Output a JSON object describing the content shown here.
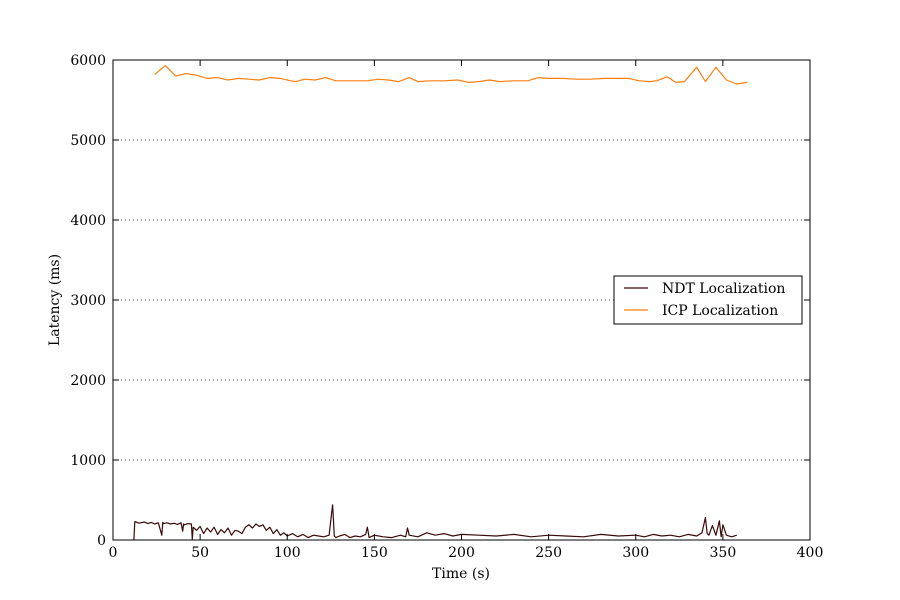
{
  "chart_data": {
    "type": "line",
    "title": "",
    "xlabel": "Time (s)",
    "ylabel": "Latency (ms)",
    "xlim": [
      0,
      400
    ],
    "ylim": [
      0,
      6000
    ],
    "xticks": [
      "0",
      "50",
      "100",
      "150",
      "200",
      "250",
      "300",
      "350",
      "400"
    ],
    "yticks": [
      "0",
      "1000",
      "2000",
      "3000",
      "4000",
      "5000",
      "6000"
    ],
    "grid": "horizontal dotted",
    "legend_position": "center-right",
    "series": [
      {
        "name": "NDT Localization",
        "color": "#3a0a0a",
        "x": [
          12,
          12.5,
          15,
          18,
          20,
          22,
          24,
          26,
          28,
          28.6,
          29,
          31,
          33,
          35,
          37,
          39,
          40,
          40.5,
          41,
          43,
          45,
          45.5,
          46,
          48,
          50,
          52,
          54,
          56,
          58,
          60,
          62,
          64,
          66,
          68,
          70,
          72,
          74,
          76,
          78,
          80,
          82,
          84,
          86,
          88,
          90,
          92,
          94,
          96,
          98,
          100,
          103,
          106,
          109,
          112,
          115,
          118,
          121,
          124,
          126,
          127,
          128,
          130,
          133,
          136,
          139,
          142,
          145,
          146,
          147,
          150,
          155,
          160,
          165,
          168,
          169,
          170,
          175,
          180,
          185,
          190,
          195,
          200,
          210,
          220,
          230,
          240,
          250,
          260,
          270,
          280,
          290,
          300,
          305,
          310,
          315,
          320,
          325,
          330,
          335,
          338,
          340,
          341,
          342,
          344,
          346,
          348,
          349,
          350,
          352,
          355,
          358
        ],
        "y": [
          0,
          230,
          210,
          225,
          205,
          220,
          200,
          215,
          60,
          220,
          205,
          215,
          200,
          210,
          195,
          215,
          110,
          200,
          190,
          205,
          200,
          10,
          160,
          120,
          170,
          80,
          150,
          100,
          160,
          70,
          130,
          90,
          150,
          60,
          120,
          110,
          80,
          160,
          190,
          150,
          200,
          170,
          190,
          120,
          160,
          80,
          130,
          60,
          90,
          50,
          80,
          40,
          70,
          30,
          60,
          50,
          40,
          60,
          440,
          50,
          30,
          50,
          70,
          30,
          50,
          40,
          70,
          160,
          30,
          60,
          40,
          30,
          60,
          40,
          150,
          60,
          40,
          90,
          60,
          80,
          50,
          70,
          60,
          50,
          70,
          40,
          60,
          50,
          40,
          70,
          50,
          60,
          40,
          70,
          50,
          60,
          40,
          70,
          50,
          90,
          280,
          80,
          60,
          180,
          60,
          240,
          40,
          190,
          60,
          40,
          60
        ]
      },
      {
        "name": "ICP Localization",
        "color": "#ff7f0e",
        "x": [
          24,
          30,
          36,
          42,
          48,
          54,
          60,
          66,
          72,
          78,
          84,
          90,
          96,
          102,
          105,
          110,
          116,
          122,
          128,
          134,
          140,
          146,
          152,
          158,
          164,
          170,
          175,
          182,
          190,
          198,
          204,
          210,
          216,
          222,
          230,
          238,
          244,
          250,
          258,
          266,
          274,
          282,
          290,
          296,
          302,
          308,
          312,
          318,
          323,
          328,
          335,
          340,
          346,
          352,
          358,
          364
        ],
        "y": [
          5820,
          5930,
          5800,
          5830,
          5810,
          5770,
          5780,
          5750,
          5770,
          5760,
          5750,
          5780,
          5770,
          5740,
          5730,
          5760,
          5750,
          5780,
          5740,
          5740,
          5740,
          5740,
          5760,
          5750,
          5730,
          5780,
          5730,
          5740,
          5740,
          5750,
          5720,
          5730,
          5750,
          5730,
          5740,
          5740,
          5780,
          5770,
          5770,
          5760,
          5760,
          5770,
          5770,
          5770,
          5740,
          5730,
          5740,
          5790,
          5720,
          5730,
          5910,
          5730,
          5910,
          5750,
          5700,
          5720
        ]
      }
    ]
  }
}
